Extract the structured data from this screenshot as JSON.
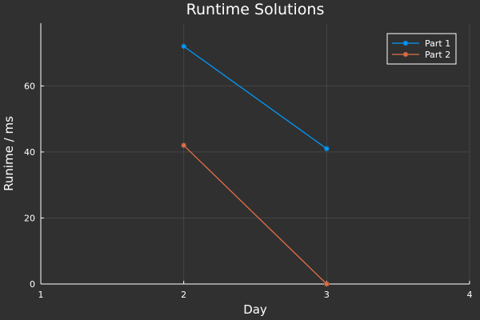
{
  "chart_data": {
    "type": "line",
    "title": "Runtime Solutions",
    "xlabel": "Day",
    "ylabel": "Runime / ms",
    "xlim": [
      1,
      4
    ],
    "ylim": [
      0,
      79
    ],
    "xticks": [
      1,
      2,
      3,
      4
    ],
    "yticks": [
      0,
      20,
      40,
      60
    ],
    "grid": true,
    "legend_position": "top-right",
    "series": [
      {
        "name": "Part 1",
        "color": "#009af9",
        "marker": "star",
        "x": [
          2,
          3
        ],
        "y": [
          72,
          41
        ]
      },
      {
        "name": "Part 2",
        "color": "#e26f46",
        "marker": "star",
        "x": [
          2,
          3
        ],
        "y": [
          42,
          0
        ]
      }
    ]
  }
}
